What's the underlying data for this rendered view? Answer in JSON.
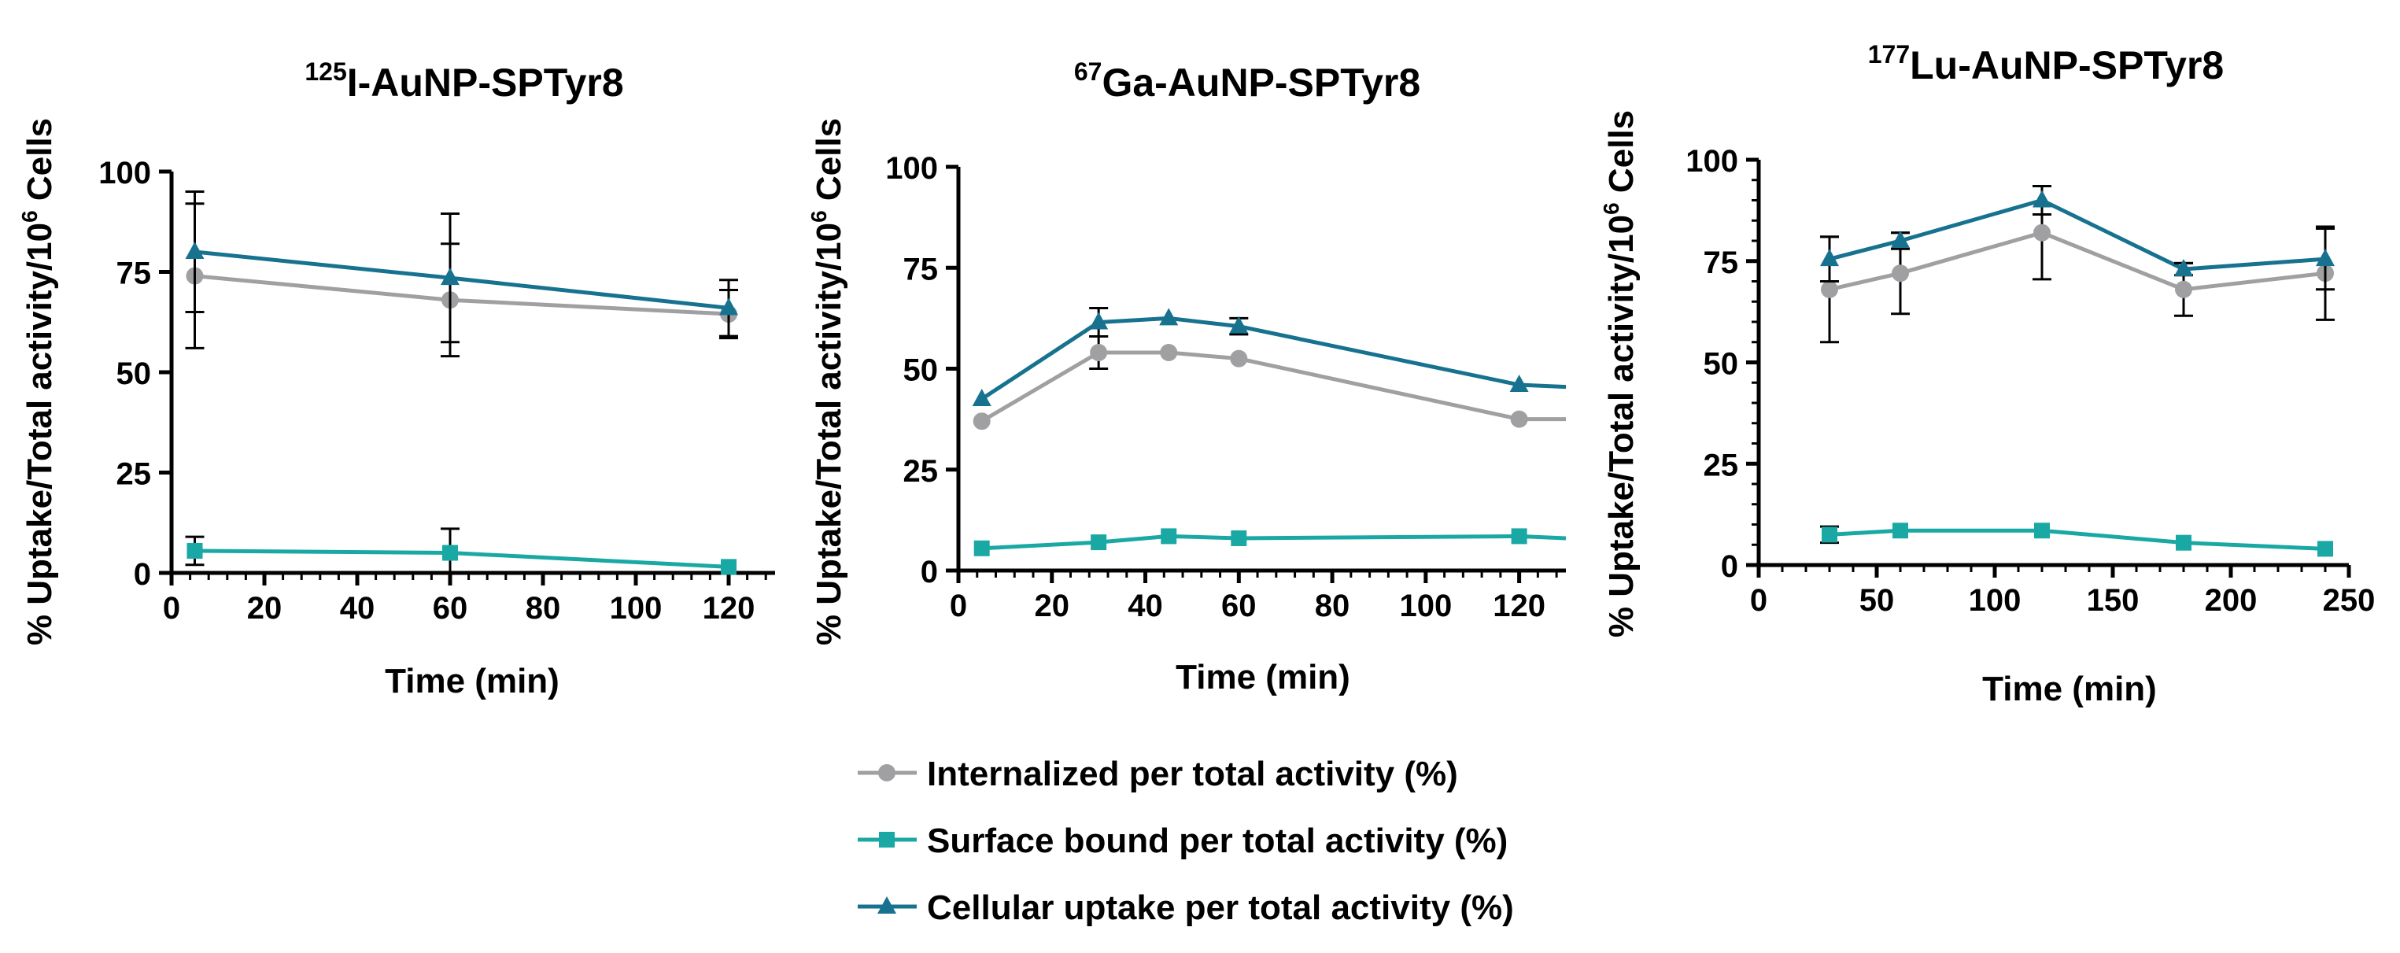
{
  "chart_data": [
    {
      "type": "line",
      "title_sup": "125",
      "title_main": "I-AuNP-SPTyr8",
      "title": "125I-AuNP-SPTyr8",
      "xlabel": "Time (min)",
      "ylabel_main": "% Uptake/Total activity/10",
      "ylabel_sup": "6",
      "ylabel_tail": " Cells",
      "ylabel": "% Uptake/Total activity/10^6 Cells",
      "xlim": [
        0,
        130
      ],
      "ylim": [
        0,
        100
      ],
      "xticks": [
        0,
        20,
        40,
        60,
        80,
        100,
        120
      ],
      "yticks": [
        0,
        25,
        50,
        75,
        100
      ],
      "series": [
        {
          "name": "Internalized per total activity (%)",
          "marker": "circle",
          "color": "#a0a0a3",
          "x": [
            5,
            60,
            120
          ],
          "y": [
            74,
            68,
            64.5
          ],
          "err": [
            18,
            14,
            6
          ]
        },
        {
          "name": "Surface bound per total activity (%)",
          "marker": "square",
          "color": "#1aa8a5",
          "x": [
            5,
            60,
            120
          ],
          "y": [
            5.5,
            5,
            1.5
          ],
          "err": [
            3.5,
            6,
            0
          ]
        },
        {
          "name": "Cellular uptake per total activity (%)",
          "marker": "triangle",
          "color": "#17728f",
          "x": [
            5,
            60,
            120
          ],
          "y": [
            80,
            73.5,
            66
          ],
          "err": [
            15,
            16,
            7
          ]
        }
      ]
    },
    {
      "type": "line",
      "title_sup": "67",
      "title_main": "Ga-AuNP-SPTyr8",
      "title": "67Ga-AuNP-SPTyr8",
      "xlabel": "Time (min)",
      "ylabel_main": "% Uptake/Total activity/10",
      "ylabel_sup": "6",
      "ylabel_tail": " Cells",
      "ylabel": "% Uptake/Total activity/10^6 Cells",
      "xlim": [
        0,
        130
      ],
      "ylim": [
        0,
        100
      ],
      "xticks": [
        0,
        20,
        40,
        60,
        80,
        100,
        120
      ],
      "yticks": [
        0,
        25,
        50,
        75,
        100
      ],
      "series": [
        {
          "name": "Internalized per total activity (%)",
          "marker": "circle",
          "color": "#a0a0a3",
          "x": [
            5,
            30,
            45,
            60,
            120,
            130
          ],
          "y": [
            37,
            54,
            54,
            52.5,
            37.5,
            37.5
          ],
          "err": [
            0,
            4,
            0,
            0,
            0,
            0
          ]
        },
        {
          "name": "Surface bound per total activity (%)",
          "marker": "square",
          "color": "#1aa8a5",
          "x": [
            5,
            30,
            45,
            60,
            120,
            130
          ],
          "y": [
            5.5,
            7,
            8.5,
            8,
            8.5,
            8
          ],
          "err": [
            0,
            0,
            0,
            0,
            0,
            0
          ]
        },
        {
          "name": "Cellular uptake per total activity (%)",
          "marker": "triangle",
          "color": "#17728f",
          "x": [
            5,
            30,
            45,
            60,
            120,
            130
          ],
          "y": [
            42.5,
            61.5,
            62.5,
            60.5,
            46,
            45.5
          ],
          "err": [
            0,
            3.5,
            0,
            2,
            0,
            0
          ]
        }
      ]
    },
    {
      "type": "line",
      "title_sup": "177",
      "title_main": "Lu-AuNP-SPTyr8",
      "title": "177Lu-AuNP-SPTyr8",
      "xlabel": "Time (min)",
      "ylabel_main": "% Uptake/Total activity/10",
      "ylabel_sup": "6",
      "ylabel_tail": " Cells",
      "ylabel": "% Uptake/Total activity/10^6 Cells",
      "xlim": [
        0,
        250
      ],
      "ylim": [
        0,
        100
      ],
      "xticks": [
        0,
        50,
        100,
        150,
        200,
        250
      ],
      "yticks": [
        0,
        25,
        50,
        75,
        100
      ],
      "series": [
        {
          "name": "Internalized per total activity (%)",
          "marker": "circle",
          "color": "#a0a0a3",
          "x": [
            30,
            60,
            120,
            180,
            240
          ],
          "y": [
            68,
            72,
            82,
            68,
            72
          ],
          "err": [
            13,
            10,
            11.5,
            6.5,
            11.5
          ]
        },
        {
          "name": "Surface bound per total activity (%)",
          "marker": "square",
          "color": "#1aa8a5",
          "x": [
            30,
            60,
            120,
            180,
            240
          ],
          "y": [
            7.5,
            8.5,
            8.5,
            5.5,
            4
          ],
          "err": [
            2,
            0,
            0,
            0,
            0
          ]
        },
        {
          "name": "Cellular uptake per total activity (%)",
          "marker": "triangle",
          "color": "#17728f",
          "x": [
            30,
            60,
            120,
            180,
            240
          ],
          "y": [
            75.5,
            80,
            90,
            73,
            75.5
          ],
          "err": [
            5.5,
            2,
            3.5,
            1.5,
            7.5
          ]
        }
      ]
    }
  ],
  "legend": {
    "items": [
      {
        "label": "Internalized per total activity (%)",
        "marker": "circle",
        "color": "#a0a0a3"
      },
      {
        "label": "Surface bound per total activity (%)",
        "marker": "square",
        "color": "#1aa8a5"
      },
      {
        "label": " Cellular uptake per total activity (%)",
        "marker": "triangle",
        "color": "#17728f"
      }
    ]
  }
}
